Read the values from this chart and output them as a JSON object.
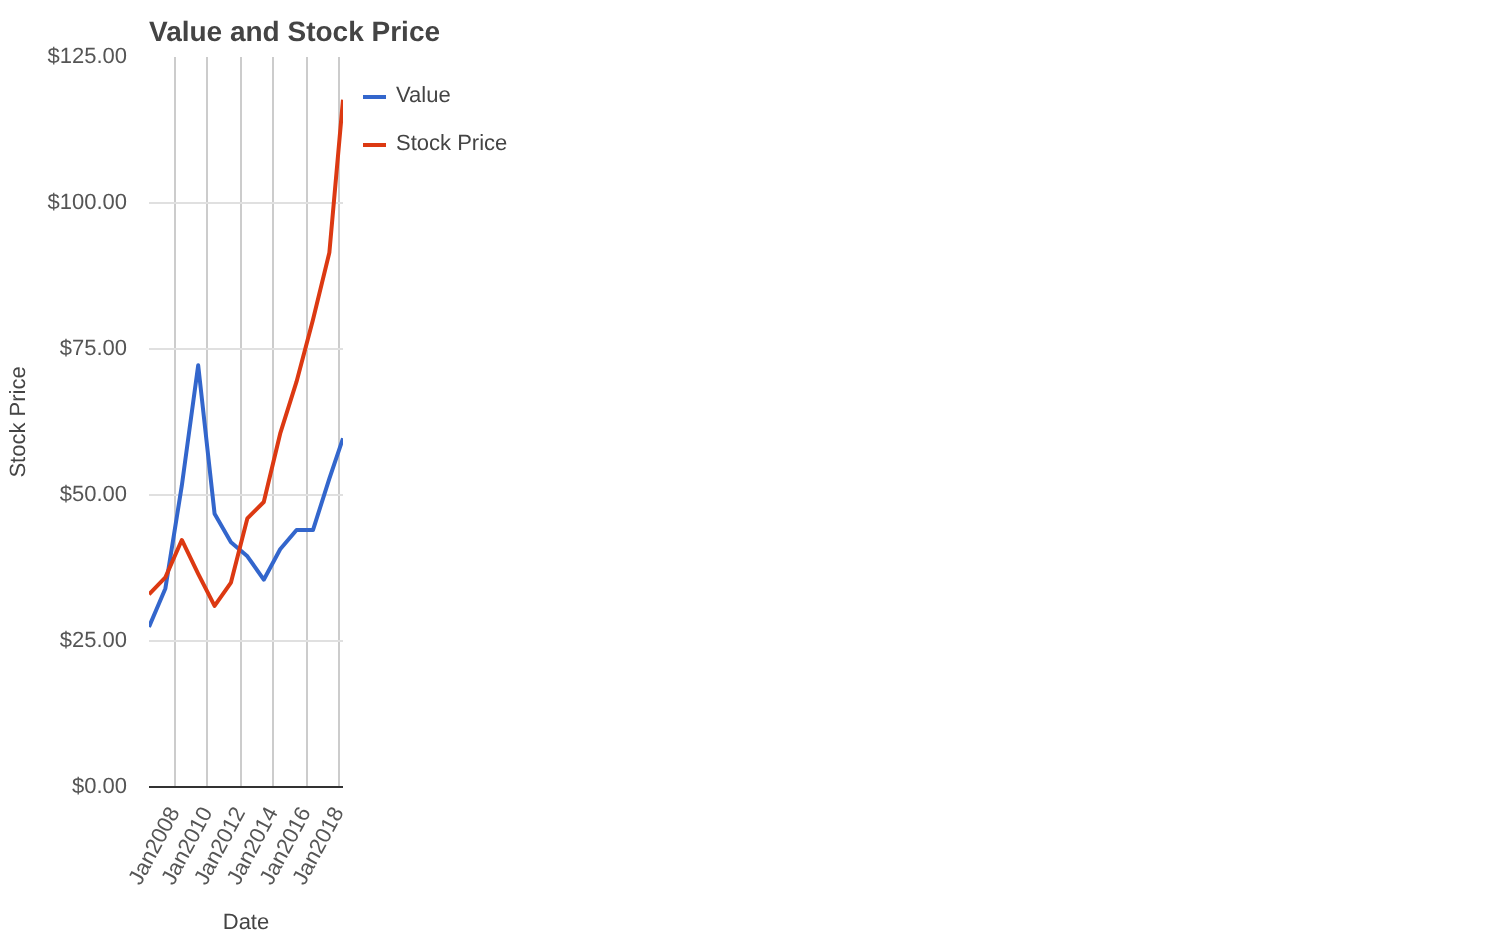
{
  "chart_data": {
    "type": "line",
    "title": "Value and Stock Price",
    "xlabel": "Date",
    "ylabel": "Stock Price",
    "x": [
      "2006-06",
      "2007-06",
      "2008-06",
      "2009-06",
      "2010-06",
      "2011-06",
      "2012-06",
      "2013-06",
      "2014-06",
      "2015-06",
      "2016-06",
      "2017-06",
      "2018-04"
    ],
    "series": [
      {
        "name": "Value",
        "color": "#3366cc",
        "values": [
          27.4,
          34,
          51.6,
          72.2,
          46.8,
          41.9,
          39.5,
          35.5,
          40.7,
          44,
          44,
          52.8,
          59.7
        ]
      },
      {
        "name": "Stock Price",
        "color": "#dc3912",
        "values": [
          33,
          35.9,
          42.3,
          36.5,
          31,
          35,
          46,
          48.8,
          60.5,
          69.4,
          80,
          91.5,
          117.7
        ]
      }
    ],
    "xlim": [
      "2006-06",
      "2018-04"
    ],
    "xticks": [
      {
        "value": "2008-01",
        "label": "Jan2008"
      },
      {
        "value": "2010-01",
        "label": "Jan2010"
      },
      {
        "value": "2012-01",
        "label": "Jan2012"
      },
      {
        "value": "2014-01",
        "label": "Jan2014"
      },
      {
        "value": "2016-01",
        "label": "Jan2016"
      },
      {
        "value": "2018-01",
        "label": "Jan2018"
      }
    ],
    "ylim": [
      0,
      125
    ],
    "yticks": [
      {
        "value": 0,
        "label": "$0.00"
      },
      {
        "value": 25,
        "label": "$25.00"
      },
      {
        "value": 50,
        "label": "$50.00"
      },
      {
        "value": 75,
        "label": "$75.00"
      },
      {
        "value": 100,
        "label": "$100.00"
      },
      {
        "value": 125,
        "label": "$125.00"
      }
    ],
    "grid": true,
    "legend": "top right",
    "marker": "none",
    "line_style": "solid"
  }
}
